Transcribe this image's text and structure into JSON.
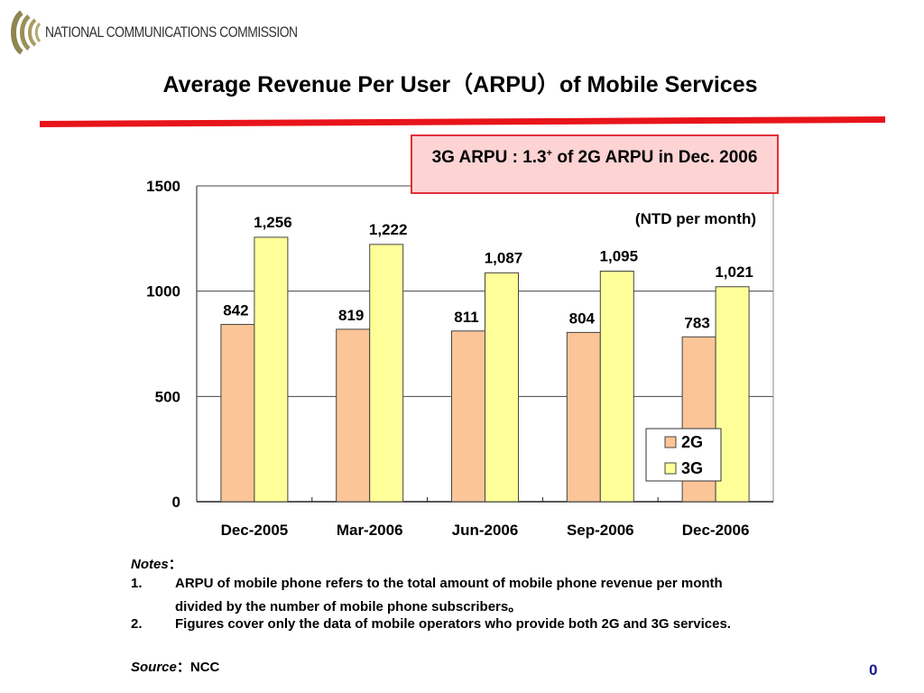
{
  "header": {
    "organization": "NATIONAL COMMUNICATIONS COMMISSION",
    "title": "Average Revenue Per User（ARPU）of Mobile Services",
    "accent_color": "#e8141b"
  },
  "callout": {
    "text_before": "3G ARPU : 1.3",
    "superscript": "+",
    "text_after": " of 2G ARPU in Dec. 2006"
  },
  "chart_data": {
    "type": "bar",
    "title": "",
    "unit_label": "(NTD per month)",
    "categories": [
      "Dec-2005",
      "Mar-2006",
      "Jun-2006",
      "Sep-2006",
      "Dec-2006"
    ],
    "series": [
      {
        "name": "2G",
        "values": [
          842,
          819,
          811,
          804,
          783
        ],
        "labels": [
          "842",
          "819",
          "811",
          "804",
          "783"
        ],
        "color": "#fbc598"
      },
      {
        "name": "3G",
        "values": [
          1256,
          1222,
          1087,
          1095,
          1021
        ],
        "labels": [
          "1,256",
          "1,222",
          "1,087",
          "1,095",
          "1,021"
        ],
        "color": "#ffff99"
      }
    ],
    "xlabel": "",
    "ylabel": "",
    "ylim": [
      0,
      1500
    ],
    "yticks": [
      0,
      500,
      1000,
      1500
    ],
    "grid": true,
    "legend": "bottom-right"
  },
  "notes": {
    "heading": "Notes",
    "sep": "：",
    "items": [
      {
        "num": "1.",
        "lines": [
          "ARPU of mobile phone refers to the total amount of mobile phone revenue per month",
          "divided  by the number of mobile phone subscribers。"
        ]
      },
      {
        "num": "2.",
        "lines": [
          "Figures cover only  the data of mobile operators who provide both 2G and 3G services."
        ]
      }
    ]
  },
  "source": {
    "heading": "Source",
    "sep": "：",
    "value": "NCC"
  },
  "page_number": "0"
}
